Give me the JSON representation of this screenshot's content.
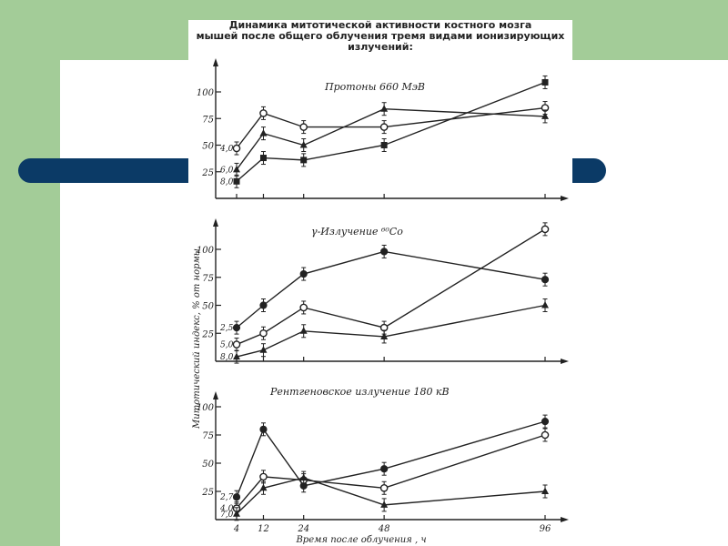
{
  "slide": {
    "colors": {
      "green": "#a3cc98",
      "blue": "#0b3a66",
      "white": "#ffffff",
      "ink": "#222222"
    }
  },
  "figure": {
    "title_lines": [
      "Динамика митотической активности костного мозга",
      "мышей после общего облучения тремя видами ионизирующих",
      "излучений:"
    ],
    "ylabel": "Митотический индекс, % от нормы",
    "xlabel": "Время после облучения , ч"
  },
  "chart_data": [
    {
      "type": "line",
      "title": "Протоны 660 МэВ",
      "x": [
        4,
        12,
        24,
        48,
        96
      ],
      "xlim": [
        0,
        100
      ],
      "ylim": [
        0,
        125
      ],
      "yticks": [
        25,
        50,
        75,
        100
      ],
      "grid": false,
      "series": [
        {
          "name": "4,0",
          "marker": "open-circle",
          "values": [
            47,
            80,
            67,
            67,
            85
          ]
        },
        {
          "name": "6,0",
          "marker": "triangle",
          "values": [
            27,
            61,
            50,
            84,
            77
          ]
        },
        {
          "name": "8,0",
          "marker": "square",
          "values": [
            16,
            38,
            36,
            50,
            109
          ]
        }
      ]
    },
    {
      "type": "line",
      "title": "γ-Излучение ⁶⁰Co",
      "x": [
        4,
        12,
        24,
        48,
        96
      ],
      "xlim": [
        0,
        100
      ],
      "ylim": [
        0,
        125
      ],
      "yticks": [
        25,
        50,
        75,
        100
      ],
      "grid": false,
      "series": [
        {
          "name": "2,5",
          "marker": "filled-circle",
          "values": [
            30,
            50,
            78,
            98,
            73
          ]
        },
        {
          "name": "5,0",
          "marker": "open-circle",
          "values": [
            15,
            25,
            48,
            30,
            118
          ]
        },
        {
          "name": "8,0",
          "marker": "triangle",
          "values": [
            4,
            10,
            27,
            22,
            50
          ]
        }
      ]
    },
    {
      "type": "line",
      "title": "Рентгеновское излучение 180 кВ",
      "x": [
        4,
        12,
        24,
        48,
        96
      ],
      "xticks": [
        4,
        12,
        24,
        48,
        96
      ],
      "xlim": [
        0,
        100
      ],
      "ylim": [
        0,
        125
      ],
      "yticks": [
        25,
        50,
        75,
        100
      ],
      "grid": false,
      "series": [
        {
          "name": "2,7",
          "marker": "filled-circle",
          "values": [
            20,
            80,
            30,
            45,
            87
          ]
        },
        {
          "name": "4,0",
          "marker": "open-circle",
          "values": [
            10,
            38,
            35,
            28,
            75
          ]
        },
        {
          "name": "7,0",
          "marker": "triangle",
          "values": [
            5,
            28,
            37,
            13,
            25
          ]
        }
      ]
    }
  ]
}
